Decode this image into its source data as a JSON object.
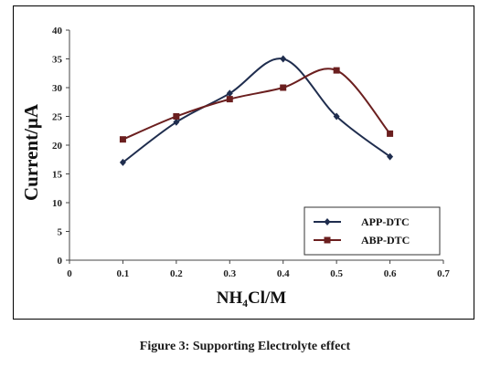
{
  "chart_data": {
    "type": "line",
    "title": "",
    "xlabel": "NH₄Cl/M",
    "ylabel": "Current/μA",
    "xlim": [
      0,
      0.7
    ],
    "ylim": [
      0,
      40
    ],
    "xticks": [
      "0",
      "0.1",
      "0.2",
      "0.3",
      "0.4",
      "0.5",
      "0.6",
      "0.7"
    ],
    "yticks": [
      "0",
      "5",
      "10",
      "15",
      "20",
      "25",
      "30",
      "35",
      "40"
    ],
    "grid": false,
    "legend_position": "bottom-right",
    "series": [
      {
        "name": "APP-DTC",
        "color": "#1f2d4e",
        "marker": "diamond",
        "x": [
          0.1,
          0.2,
          0.3,
          0.4,
          0.5,
          0.6
        ],
        "y": [
          17,
          24,
          29,
          35,
          25,
          18
        ]
      },
      {
        "name": "ABP-DTC",
        "color": "#6b1f1f",
        "marker": "square",
        "x": [
          0.1,
          0.2,
          0.3,
          0.4,
          0.5,
          0.6
        ],
        "y": [
          21,
          25,
          28,
          30,
          33,
          22
        ]
      }
    ]
  },
  "caption": "Figure 3: Supporting Electrolyte effect"
}
